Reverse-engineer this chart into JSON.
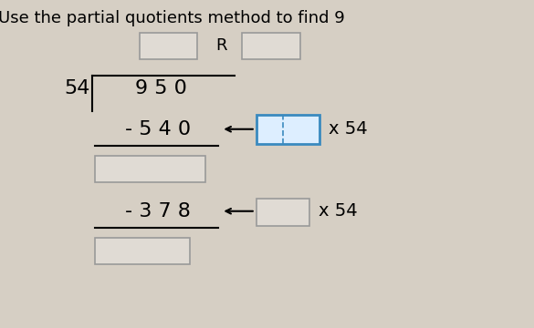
{
  "title": "Use the partial quotients method to find 9",
  "title_fontsize": 13,
  "bg_color": "#d6cfc4",
  "divisor": "54",
  "dividend": "9 5 0",
  "sub1": "- 5 4 0",
  "sub2": "- 3 7 8",
  "x54_label": "x 54",
  "R_label": "R",
  "box1_border": "#3a8abf",
  "box1_face": "#ddeeff",
  "box2_border": "#999999",
  "box2_face": "#e0dbd4"
}
